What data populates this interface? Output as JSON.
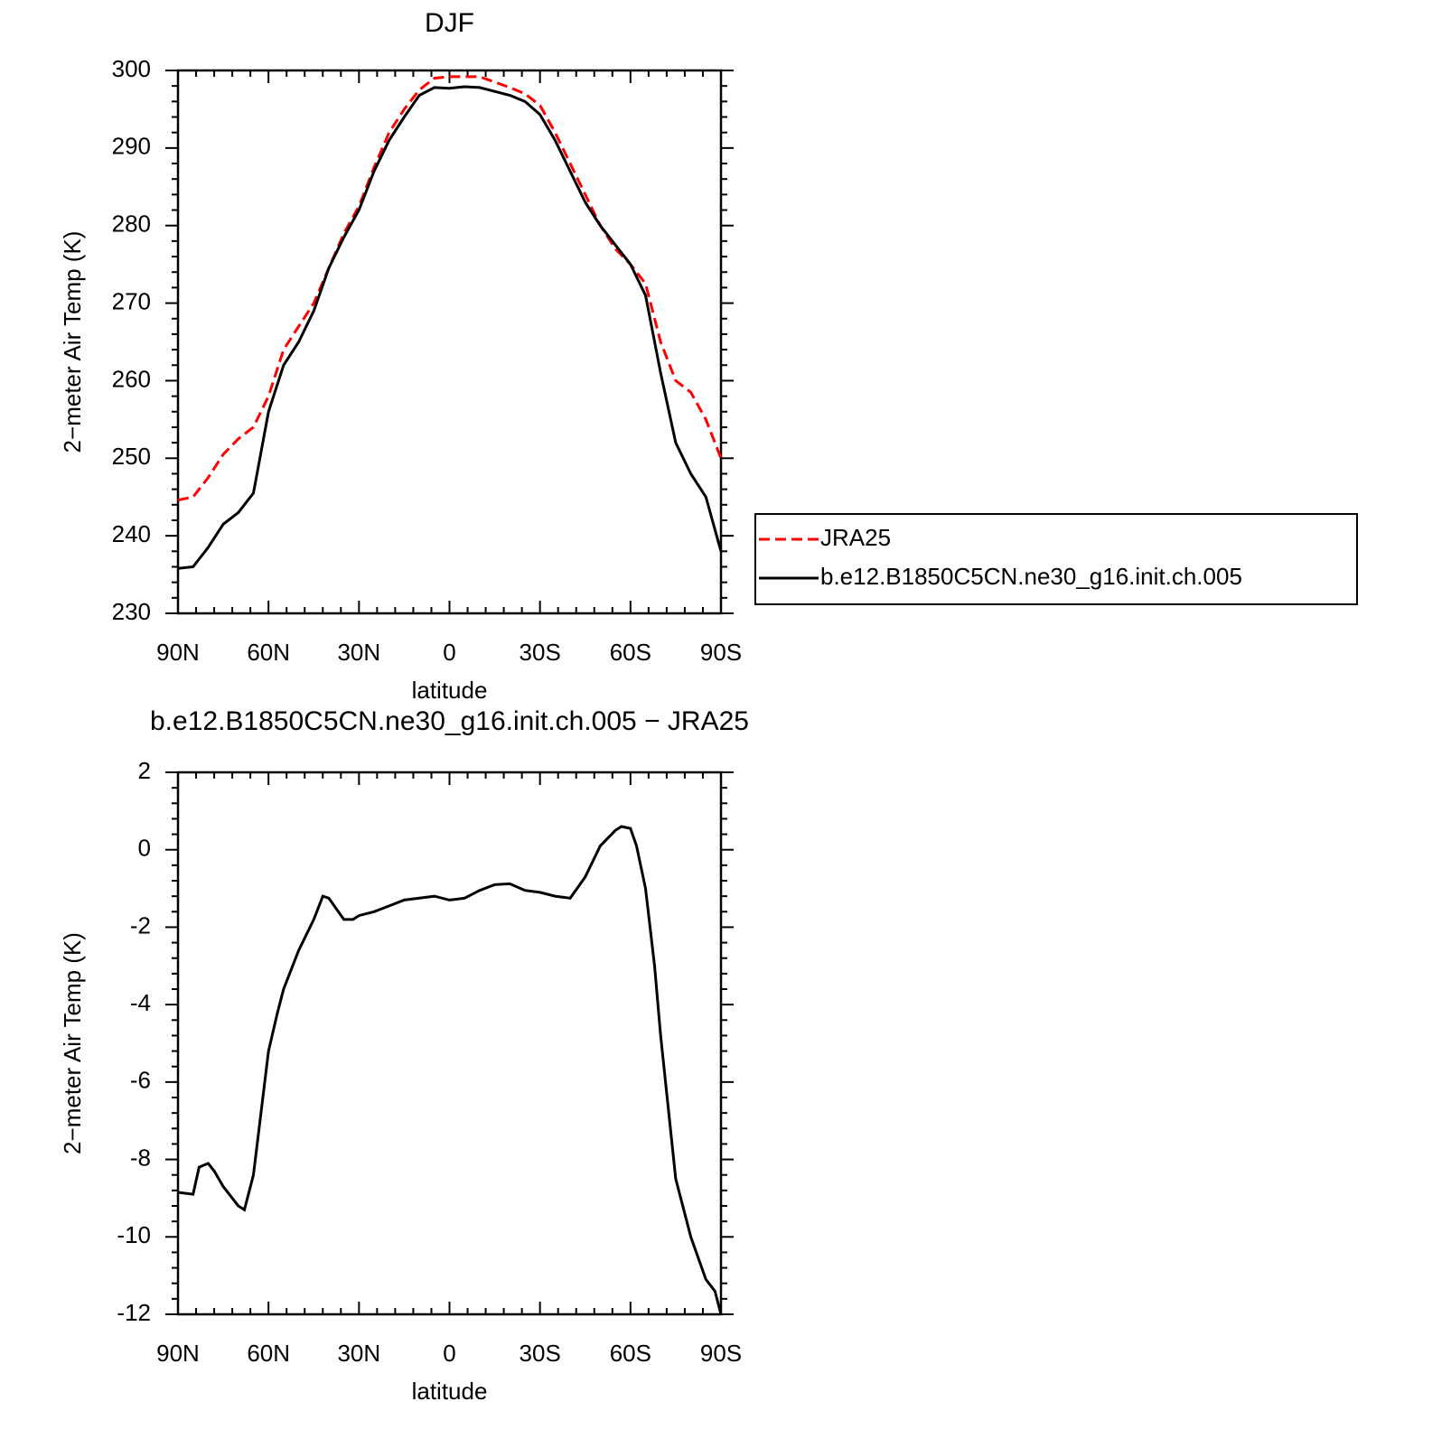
{
  "chart_data": [
    {
      "type": "line",
      "title": "DJF",
      "xlabel": "latitude",
      "ylabel": "2−meter Air Temp (K)",
      "x": [
        90,
        85,
        80,
        75,
        70,
        65,
        60,
        55,
        50,
        45,
        40,
        35,
        30,
        25,
        20,
        15,
        10,
        5,
        0,
        -5,
        -10,
        -15,
        -20,
        -25,
        -30,
        -35,
        -40,
        -45,
        -50,
        -55,
        -60,
        -65,
        -70,
        -75,
        -80,
        -85,
        -90
      ],
      "xlim": [
        90,
        -90
      ],
      "xticks": [
        {
          "value": 90,
          "label": "90N"
        },
        {
          "value": 60,
          "label": "60N"
        },
        {
          "value": 30,
          "label": "30N"
        },
        0,
        {
          "value": -30,
          "label": "30S"
        },
        {
          "value": -60,
          "label": "60S"
        },
        {
          "value": -90,
          "label": "90S"
        }
      ],
      "ylim": [
        230,
        300
      ],
      "yticks": [
        230,
        240,
        250,
        260,
        270,
        280,
        290,
        300
      ],
      "legend": "right",
      "series": [
        {
          "name": "JRA25",
          "color": "#ff0000",
          "linestyle": "dashed",
          "values": [
            244.6,
            245,
            247.5,
            250.5,
            252.5,
            254,
            258,
            264,
            267,
            270,
            274.5,
            279,
            282.5,
            287.5,
            292,
            295,
            297.5,
            299,
            299.2,
            299.2,
            299.2,
            298.5,
            297.8,
            297,
            295.5,
            292,
            288,
            284,
            280,
            277,
            275,
            272.5,
            265,
            260,
            258.5,
            255,
            250
          ]
        },
        {
          "name": "b.e12.B1850C5CN.ne30_g16.init.ch.005",
          "color": "#000000",
          "linestyle": "solid",
          "values": [
            235.8,
            236,
            238.5,
            241.5,
            243,
            245.5,
            256,
            262,
            265,
            269,
            274.5,
            278.5,
            282,
            287,
            291,
            294,
            296.8,
            297.8,
            297.7,
            297.9,
            297.8,
            297.3,
            296.8,
            296,
            294.3,
            291,
            287,
            283,
            280,
            277.5,
            275,
            271,
            261,
            252,
            248,
            245,
            238
          ]
        }
      ]
    },
    {
      "type": "line",
      "title": "b.e12.B1850C5CN.ne30_g16.init.ch.005 − JRA25",
      "xlabel": "latitude",
      "ylabel": "2−meter Air Temp (K)",
      "x": [
        90,
        85,
        83,
        80,
        78,
        75,
        72,
        70,
        68,
        65,
        60,
        57,
        55,
        50,
        45,
        42,
        40,
        35,
        32,
        30,
        25,
        20,
        15,
        10,
        5,
        0,
        -5,
        -10,
        -15,
        -20,
        -25,
        -30,
        -35,
        -40,
        -45,
        -50,
        -55,
        -57,
        -60,
        -62,
        -65,
        -68,
        -70,
        -75,
        -80,
        -85,
        -88,
        -90
      ],
      "xlim": [
        90,
        -90
      ],
      "xticks": [
        {
          "value": 90,
          "label": "90N"
        },
        {
          "value": 60,
          "label": "60N"
        },
        {
          "value": 30,
          "label": "30N"
        },
        0,
        {
          "value": -30,
          "label": "30S"
        },
        {
          "value": -60,
          "label": "60S"
        },
        {
          "value": -90,
          "label": "90S"
        }
      ],
      "ylim": [
        -12,
        2
      ],
      "yticks": [
        -12,
        -10,
        -8,
        -6,
        -4,
        -2,
        0,
        2
      ],
      "series": [
        {
          "name": "b.e12.B1850C5CN.ne30_g16.init.ch.005 − JRA25",
          "color": "#000000",
          "linestyle": "solid",
          "values": [
            -8.85,
            -8.9,
            -8.2,
            -8.1,
            -8.3,
            -8.7,
            -9.0,
            -9.2,
            -9.3,
            -8.4,
            -5.2,
            -4.2,
            -3.6,
            -2.6,
            -1.8,
            -1.2,
            -1.25,
            -1.8,
            -1.8,
            -1.7,
            -1.6,
            -1.45,
            -1.3,
            -1.25,
            -1.2,
            -1.3,
            -1.25,
            -1.05,
            -0.9,
            -0.88,
            -1.05,
            -1.1,
            -1.2,
            -1.25,
            -0.7,
            0.1,
            0.5,
            0.6,
            0.55,
            0.1,
            -1.0,
            -3.0,
            -4.8,
            -8.5,
            -10,
            -11.1,
            -11.4,
            -12
          ]
        }
      ]
    }
  ]
}
